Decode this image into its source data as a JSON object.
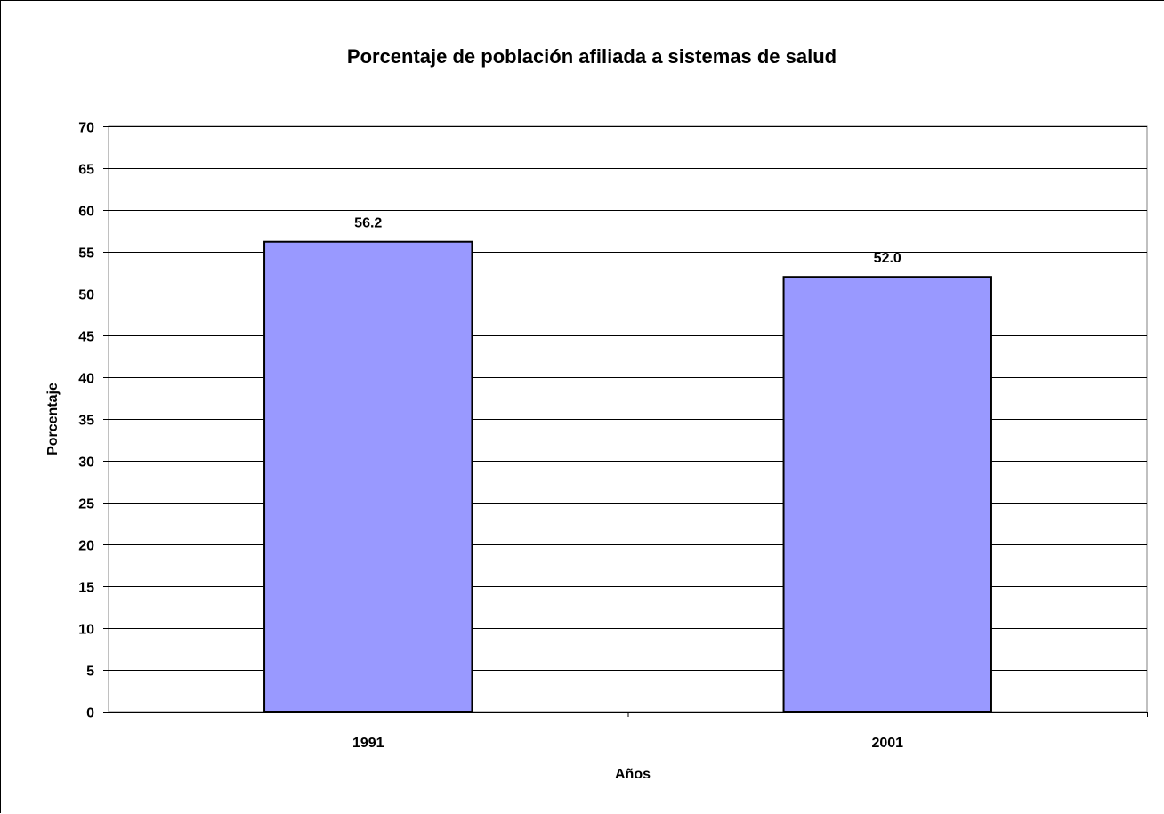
{
  "chart_data": {
    "type": "bar",
    "title": "Porcentaje de población afiliada a sistemas de salud",
    "xlabel": "Años",
    "ylabel": "Porcentaje",
    "categories": [
      "1991",
      "2001"
    ],
    "values": [
      56.2,
      52.0
    ],
    "data_labels": [
      "56.2",
      "52.0"
    ],
    "ylim": [
      0,
      70
    ],
    "yticks": [
      "0",
      "5",
      "10",
      "15",
      "20",
      "25",
      "30",
      "35",
      "40",
      "45",
      "50",
      "55",
      "60",
      "65",
      "70"
    ],
    "grid": true,
    "legend": "none",
    "bar_color": "#9999FF",
    "bar_border_color": "#000000",
    "gridline_color": "#000000"
  }
}
